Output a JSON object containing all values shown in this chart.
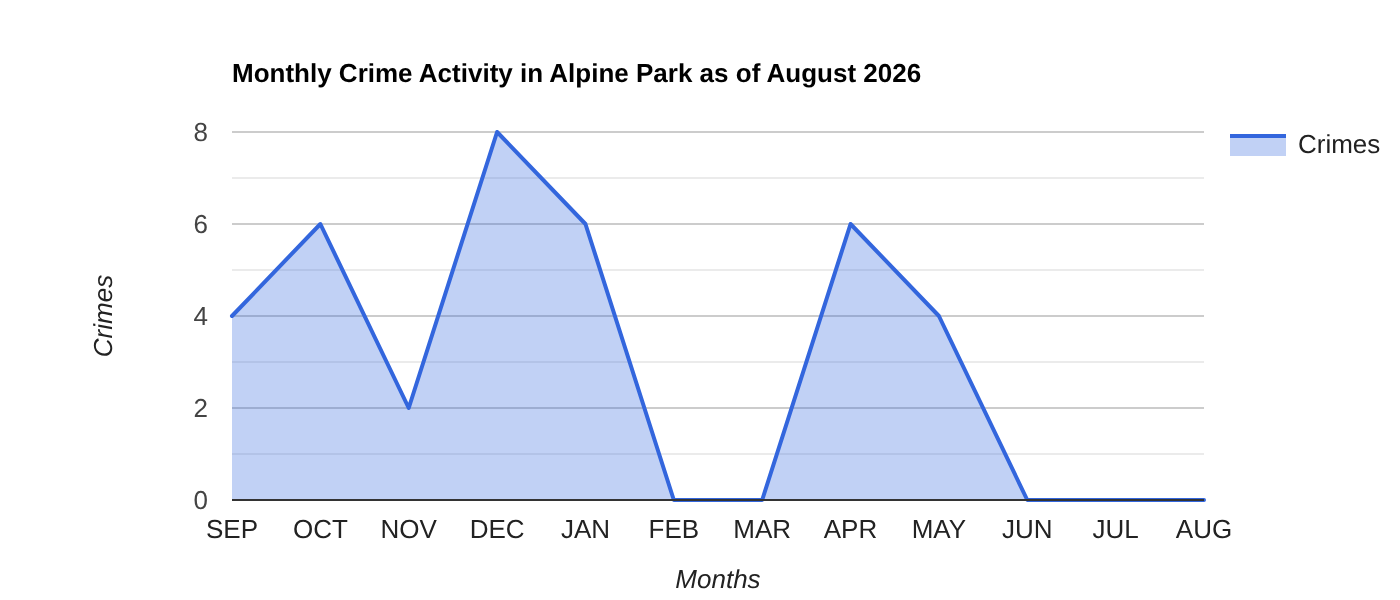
{
  "chart_data": {
    "type": "area",
    "title": "Monthly Crime Activity in Alpine Park as of August 2026",
    "xlabel": "Months",
    "ylabel": "Crimes",
    "categories": [
      "SEP",
      "OCT",
      "NOV",
      "DEC",
      "JAN",
      "FEB",
      "MAR",
      "APR",
      "MAY",
      "JUN",
      "JUL",
      "AUG"
    ],
    "series": [
      {
        "name": "Crimes",
        "color": "#3366dd",
        "values": [
          4,
          6,
          2,
          8,
          6,
          0,
          0,
          6,
          4,
          0,
          0,
          0
        ]
      }
    ],
    "ylim": [
      0,
      8
    ],
    "yticks": [
      0,
      2,
      4,
      6,
      8
    ],
    "grid": "y",
    "legend": "top right"
  }
}
